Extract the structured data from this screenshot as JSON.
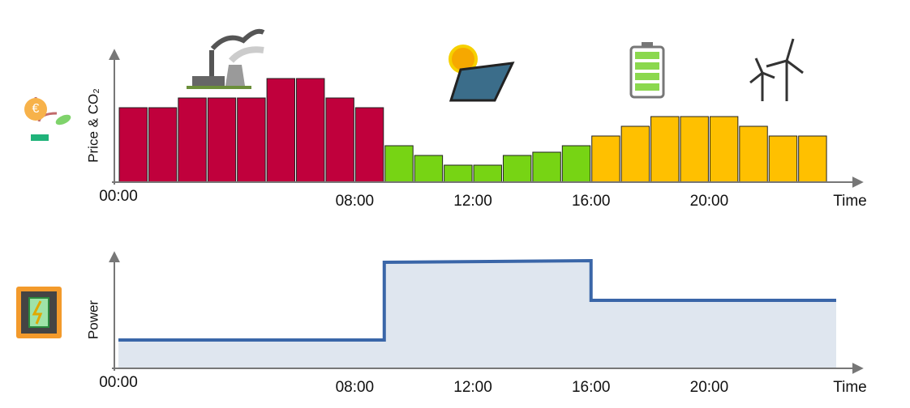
{
  "chart_data": [
    {
      "type": "bar",
      "ylabel": "Price & CO₂",
      "xlabel": "Time",
      "x": [
        0,
        1,
        2,
        3,
        4,
        5,
        6,
        7,
        8,
        9,
        10,
        11,
        12,
        13,
        14,
        15,
        16,
        17,
        18,
        19,
        20,
        21,
        22,
        23
      ],
      "values": [
        9.2,
        9.2,
        10.4,
        10.4,
        10.4,
        12.8,
        12.8,
        10.4,
        9.2,
        4.5,
        3.3,
        2.1,
        2.1,
        3.3,
        3.7,
        4.5,
        5.7,
        6.9,
        8.1,
        8.1,
        8.1,
        6.9,
        5.7,
        5.7
      ],
      "colors": [
        "#c0003c",
        "#c0003c",
        "#c0003c",
        "#c0003c",
        "#c0003c",
        "#c0003c",
        "#c0003c",
        "#c0003c",
        "#c0003c",
        "#77d414",
        "#77d414",
        "#77d414",
        "#77d414",
        "#77d414",
        "#77d414",
        "#77d414",
        "#ffc000",
        "#ffc000",
        "#ffc000",
        "#ffc000",
        "#ffc000",
        "#ffc000",
        "#ffc000",
        "#ffc000"
      ],
      "xlim": [
        0,
        24
      ],
      "ylim": [
        0,
        16
      ],
      "xticks": [
        {
          "value": 0,
          "label": "00:00"
        },
        {
          "value": 8,
          "label": "08:00"
        },
        {
          "value": 12,
          "label": "12:00"
        },
        {
          "value": 16,
          "label": "16:00"
        },
        {
          "value": 20,
          "label": "20:00"
        }
      ]
    },
    {
      "type": "line",
      "ylabel": "Power",
      "xlabel": "Time",
      "x": [
        0,
        9,
        9,
        16,
        16,
        24.3
      ],
      "values": [
        3.5,
        3.5,
        13.1,
        13.3,
        8.4,
        8.4
      ],
      "color": "#3a66a8",
      "fill": "#dfe6ef",
      "xlim": [
        0,
        24
      ],
      "ylim": [
        0,
        14
      ],
      "xticks": [
        {
          "value": 0,
          "label": "00:00"
        },
        {
          "value": 8,
          "label": "08:00"
        },
        {
          "value": 12,
          "label": "12:00"
        },
        {
          "value": 16,
          "label": "16:00"
        },
        {
          "value": 20,
          "label": "20:00"
        }
      ]
    }
  ]
}
